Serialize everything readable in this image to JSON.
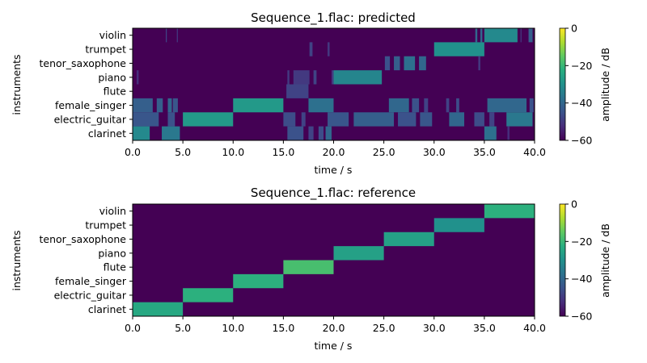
{
  "chart_data": [
    {
      "type": "heatmap",
      "title": "Sequence_1.flac: predicted",
      "xlabel": "time / s",
      "ylabel": "instruments",
      "xlim": [
        0,
        40
      ],
      "xticks": [
        "0.0",
        "5.0",
        "10.0",
        "15.0",
        "20.0",
        "25.0",
        "30.0",
        "35.0",
        "40.0"
      ],
      "colorbar": {
        "label": "amplitude / dB",
        "range": [
          -60,
          0
        ],
        "ticks": [
          "0",
          "−20",
          "−40",
          "−60"
        ],
        "colormap": "viridis"
      },
      "rows": [
        {
          "name": "violin",
          "segments": [
            [
              3.3,
              3.4,
              -48
            ],
            [
              4.4,
              4.5,
              -50
            ],
            [
              34.1,
              34.3,
              -40
            ],
            [
              34.6,
              34.8,
              -40
            ],
            [
              35.0,
              38.3,
              -32
            ],
            [
              38.6,
              38.7,
              -50
            ],
            [
              39.4,
              39.8,
              -42
            ]
          ]
        },
        {
          "name": "trumpet",
          "segments": [
            [
              17.6,
              17.9,
              -48
            ],
            [
              19.4,
              19.6,
              -50
            ],
            [
              30.0,
              35.0,
              -30
            ]
          ]
        },
        {
          "name": "tenor_saxophone",
          "segments": [
            [
              25.1,
              25.6,
              -45
            ],
            [
              26.0,
              26.6,
              -42
            ],
            [
              27.0,
              28.1,
              -38
            ],
            [
              28.5,
              29.2,
              -40
            ],
            [
              34.4,
              34.6,
              -50
            ]
          ]
        },
        {
          "name": "piano",
          "segments": [
            [
              0.4,
              0.6,
              -52
            ],
            [
              15.4,
              15.6,
              -50
            ],
            [
              16.0,
              17.6,
              -50
            ],
            [
              18.0,
              18.3,
              -48
            ],
            [
              19.8,
              20.0,
              -50
            ],
            [
              20.0,
              24.8,
              -33
            ]
          ]
        },
        {
          "name": "flute",
          "segments": [
            [
              15.3,
              17.5,
              -48
            ]
          ]
        },
        {
          "name": "female_singer",
          "segments": [
            [
              0.0,
              2.0,
              -42
            ],
            [
              2.4,
              3.0,
              -42
            ],
            [
              3.5,
              3.9,
              -40
            ],
            [
              4.0,
              4.5,
              -44
            ],
            [
              10.0,
              15.0,
              -28
            ],
            [
              17.5,
              20.0,
              -38
            ],
            [
              25.5,
              27.5,
              -40
            ],
            [
              27.8,
              28.5,
              -45
            ],
            [
              29.0,
              29.4,
              -48
            ],
            [
              31.2,
              31.5,
              -48
            ],
            [
              32.2,
              32.5,
              -46
            ],
            [
              35.3,
              39.2,
              -40
            ],
            [
              39.5,
              39.9,
              -45
            ]
          ]
        },
        {
          "name": "electric_guitar",
          "segments": [
            [
              0.0,
              2.6,
              -44
            ],
            [
              3.5,
              4.2,
              -45
            ],
            [
              5.0,
              10.0,
              -28
            ],
            [
              15.0,
              16.2,
              -46
            ],
            [
              16.8,
              17.2,
              -48
            ],
            [
              19.4,
              21.5,
              -44
            ],
            [
              22.0,
              26.0,
              -42
            ],
            [
              26.4,
              28.2,
              -45
            ],
            [
              28.6,
              29.8,
              -44
            ],
            [
              31.5,
              33.0,
              -40
            ],
            [
              34.0,
              35.0,
              -46
            ],
            [
              35.5,
              36.0,
              -48
            ],
            [
              37.2,
              39.8,
              -36
            ]
          ]
        },
        {
          "name": "clarinet",
          "segments": [
            [
              0.0,
              1.7,
              -32
            ],
            [
              2.9,
              4.7,
              -36
            ],
            [
              15.4,
              17.0,
              -45
            ],
            [
              17.5,
              18.0,
              -48
            ],
            [
              18.5,
              19.0,
              -46
            ],
            [
              19.2,
              19.8,
              -40
            ],
            [
              35.0,
              36.2,
              -38
            ],
            [
              37.3,
              37.5,
              -52
            ]
          ]
        }
      ]
    },
    {
      "type": "heatmap",
      "title": "Sequence_1.flac: reference",
      "xlabel": "time / s",
      "ylabel": "instruments",
      "xlim": [
        0,
        40
      ],
      "xticks": [
        "0.0",
        "5.0",
        "10.0",
        "15.0",
        "20.0",
        "25.0",
        "30.0",
        "35.0",
        "40.0"
      ],
      "colorbar": {
        "label": "amplitude / dB",
        "range": [
          -60,
          0
        ],
        "ticks": [
          "0",
          "−20",
          "−40",
          "−60"
        ],
        "colormap": "viridis"
      },
      "rows": [
        {
          "name": "violin",
          "segments": [
            [
              35.0,
              40.0,
              -22
            ]
          ]
        },
        {
          "name": "trumpet",
          "segments": [
            [
              30.0,
              35.0,
              -30
            ]
          ]
        },
        {
          "name": "tenor_saxophone",
          "segments": [
            [
              25.0,
              30.0,
              -26
            ]
          ]
        },
        {
          "name": "piano",
          "segments": [
            [
              20.0,
              25.0,
              -26
            ]
          ]
        },
        {
          "name": "flute",
          "segments": [
            [
              15.0,
              20.0,
              -18
            ]
          ]
        },
        {
          "name": "female_singer",
          "segments": [
            [
              10.0,
              15.0,
              -22
            ]
          ]
        },
        {
          "name": "electric_guitar",
          "segments": [
            [
              5.0,
              10.0,
              -22
            ]
          ]
        },
        {
          "name": "clarinet",
          "segments": [
            [
              0.0,
              5.0,
              -24
            ]
          ]
        }
      ]
    }
  ]
}
